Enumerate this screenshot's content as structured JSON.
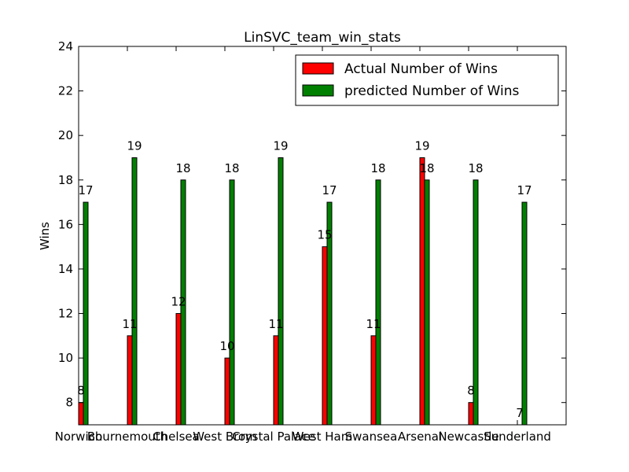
{
  "chart_data": {
    "type": "bar",
    "title": "LinSVC_team_win_stats",
    "xlabel": "",
    "ylabel": "Wins",
    "ylim": [
      7,
      24
    ],
    "yticks": [
      8,
      10,
      12,
      14,
      16,
      18,
      20,
      22,
      24
    ],
    "grid": false,
    "legend_position": "top-right",
    "categories": [
      "Norwich",
      "Bournemouth",
      "Chelsea",
      "West Brom",
      "Crystal Palace",
      "West Ham",
      "Swansea",
      "Arsenal",
      "Newcastle",
      "Sunderland"
    ],
    "series": [
      {
        "name": "Actual Number of Wins",
        "color": "#ff0000",
        "values": [
          8,
          11,
          12,
          10,
          11,
          15,
          11,
          19,
          8,
          7
        ]
      },
      {
        "name": "predicted Number of Wins",
        "color": "#008000",
        "values": [
          17,
          19,
          18,
          18,
          19,
          17,
          18,
          18,
          18,
          17
        ]
      }
    ]
  }
}
